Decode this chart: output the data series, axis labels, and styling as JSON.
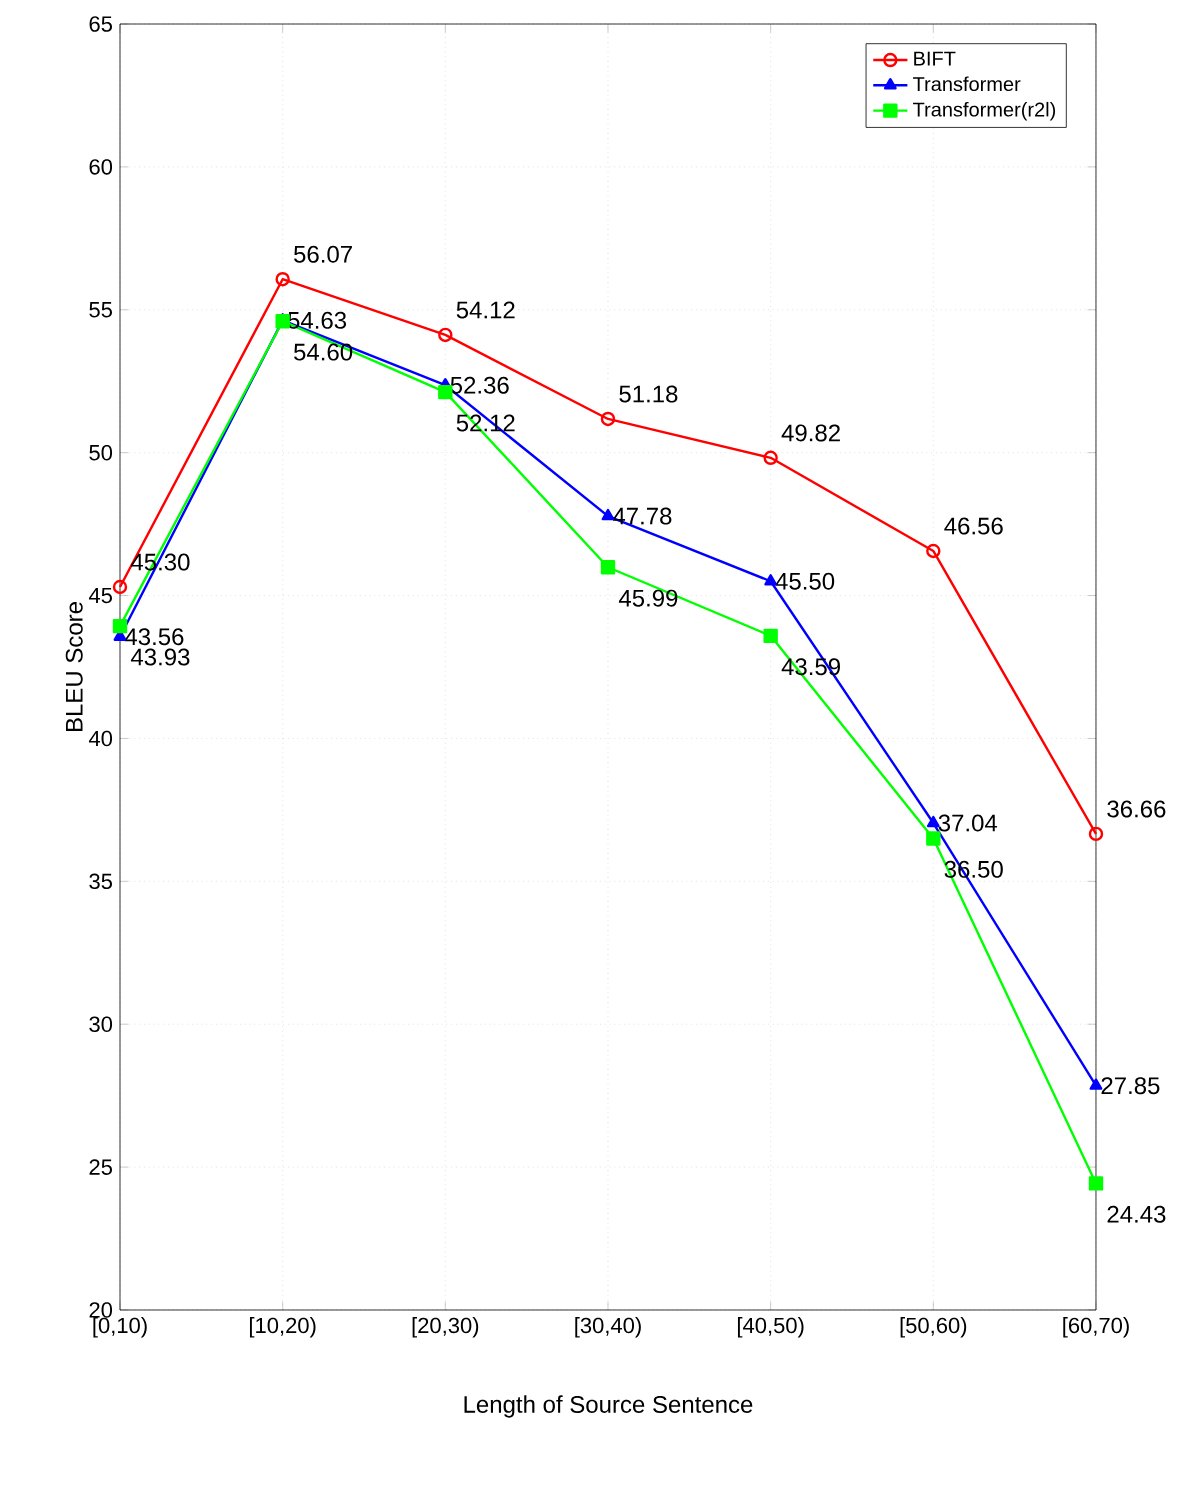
{
  "chart_data": {
    "type": "line",
    "xlabel": "Length of Source Sentence",
    "ylabel": "BLEU Score",
    "categories": [
      "[0,10)",
      "[10,20)",
      "[20,30)",
      "[30,40)",
      "[40,50)",
      "[50,60)",
      "[60,70)"
    ],
    "ylim": [
      20,
      65
    ],
    "yticks": [
      20,
      25,
      30,
      35,
      40,
      45,
      50,
      55,
      60,
      65
    ],
    "grid": true,
    "legend": "top right",
    "line_style": "solid",
    "series": [
      {
        "name": "BIFT",
        "color": "#ff0000",
        "marker": "circle",
        "values": [
          45.3,
          56.07,
          54.12,
          51.18,
          49.82,
          46.56,
          36.66
        ],
        "value_labels": [
          "45.30",
          "56.07",
          "54.12",
          "51.18",
          "49.82",
          "46.56",
          "36.66"
        ]
      },
      {
        "name": "Transformer",
        "color": "#0000ff",
        "marker": "triangle",
        "values": [
          43.56,
          54.63,
          52.36,
          47.78,
          45.5,
          37.04,
          27.85
        ],
        "value_labels": [
          "43.56",
          "54.63",
          "52.36",
          "47.78",
          "45.50",
          "37.04",
          "27.85"
        ]
      },
      {
        "name": "Transformer(r2l)",
        "color": "#00ff00",
        "marker": "square",
        "values": [
          43.93,
          54.6,
          52.12,
          45.99,
          43.59,
          36.5,
          24.43
        ],
        "value_labels": [
          "43.93",
          "54.60",
          "52.12",
          "45.99",
          "43.59",
          "36.50",
          "24.43"
        ]
      }
    ]
  }
}
